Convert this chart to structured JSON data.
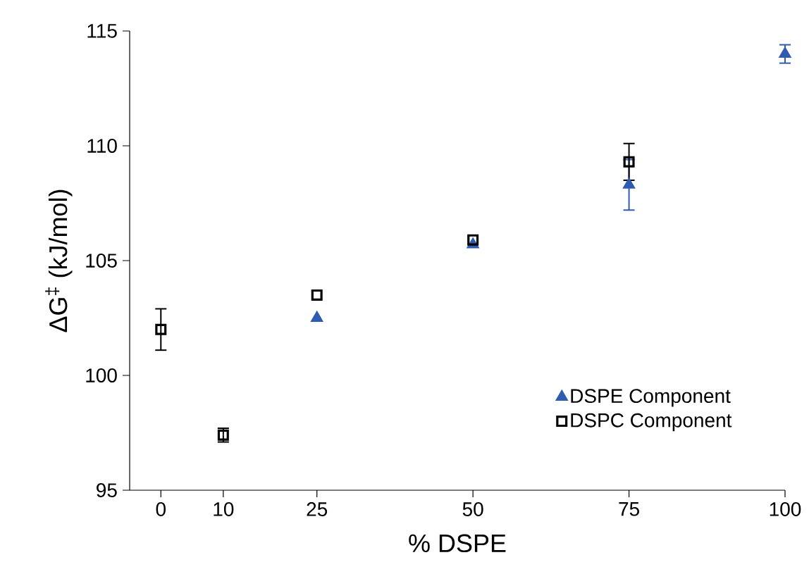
{
  "chart_data": {
    "type": "scatter",
    "xlabel": "% DSPE",
    "ylabel": "ΔG$^{‡}$ (kJ/mol)",
    "xlim": [
      -5,
      100
    ],
    "xticks": [
      0,
      10,
      25,
      50,
      75,
      100
    ],
    "ylim": [
      95,
      115
    ],
    "yticks": [
      95,
      100,
      105,
      110,
      115
    ],
    "grid": false,
    "legend": "bottom right",
    "series": [
      {
        "name": "DSPE Component",
        "color": "#2f5bb0",
        "marker": "triangle",
        "x": [
          25,
          50,
          75,
          100
        ],
        "values": [
          102.5,
          105.7,
          108.3,
          114.0
        ],
        "errors": [
          null,
          null,
          1.1,
          0.4
        ]
      },
      {
        "name": "DSPC Component",
        "color": "#000000",
        "marker": "square",
        "x": [
          0,
          10,
          25,
          50,
          75
        ],
        "values": [
          102.0,
          97.4,
          103.5,
          105.9,
          109.3
        ],
        "errors": [
          0.9,
          0.3,
          null,
          null,
          0.8
        ]
      }
    ]
  }
}
